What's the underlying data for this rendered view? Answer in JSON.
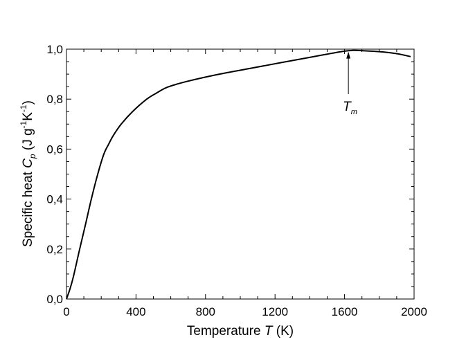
{
  "chart_data": {
    "type": "line",
    "title": "",
    "xlabel": {
      "text": "Temperature ",
      "var": "T",
      "unit": " (K)"
    },
    "ylabel": {
      "text": "Specific heat ",
      "var": "C",
      "sub": "p",
      "unit_open": " (J g",
      "exp1": "-1",
      "unit_mid": "K",
      "exp2": "-1",
      "unit_close": ")"
    },
    "xlim": [
      0,
      2000
    ],
    "ylim": [
      0,
      1.0
    ],
    "x_major_ticks": [
      0,
      400,
      800,
      1200,
      1600,
      2000
    ],
    "x_tick_labels": [
      "0",
      "400",
      "800",
      "1200",
      "1600",
      "2000"
    ],
    "x_minor_step": 100,
    "y_major_ticks": [
      0,
      0.2,
      0.4,
      0.6,
      0.8,
      1.0
    ],
    "y_tick_labels": [
      "0,0",
      "0,2",
      "0,4",
      "0,6",
      "0,8",
      "1,0"
    ],
    "y_minor_step": 0.05,
    "grid": false,
    "series": [
      {
        "name": "Cp",
        "color": "#000000",
        "x": [
          0,
          20,
          40,
          76,
          110,
          143,
          180,
          215,
          243,
          270,
          315,
          380,
          462,
          520,
          582,
          700,
          880,
          1050,
          1250,
          1400,
          1500,
          1600,
          1650,
          1700,
          1800,
          1900,
          1980
        ],
        "y": [
          0,
          0.04,
          0.09,
          0.2,
          0.3,
          0.4,
          0.5,
          0.58,
          0.62,
          0.655,
          0.7,
          0.75,
          0.8,
          0.825,
          0.848,
          0.872,
          0.9,
          0.922,
          0.948,
          0.967,
          0.98,
          0.992,
          0.995,
          0.994,
          0.99,
          0.982,
          0.97
        ]
      }
    ],
    "annotations": [
      {
        "label": "T",
        "sub": "m",
        "x": 1622,
        "y_tip": 0.99,
        "y_tail": 0.82
      }
    ]
  }
}
